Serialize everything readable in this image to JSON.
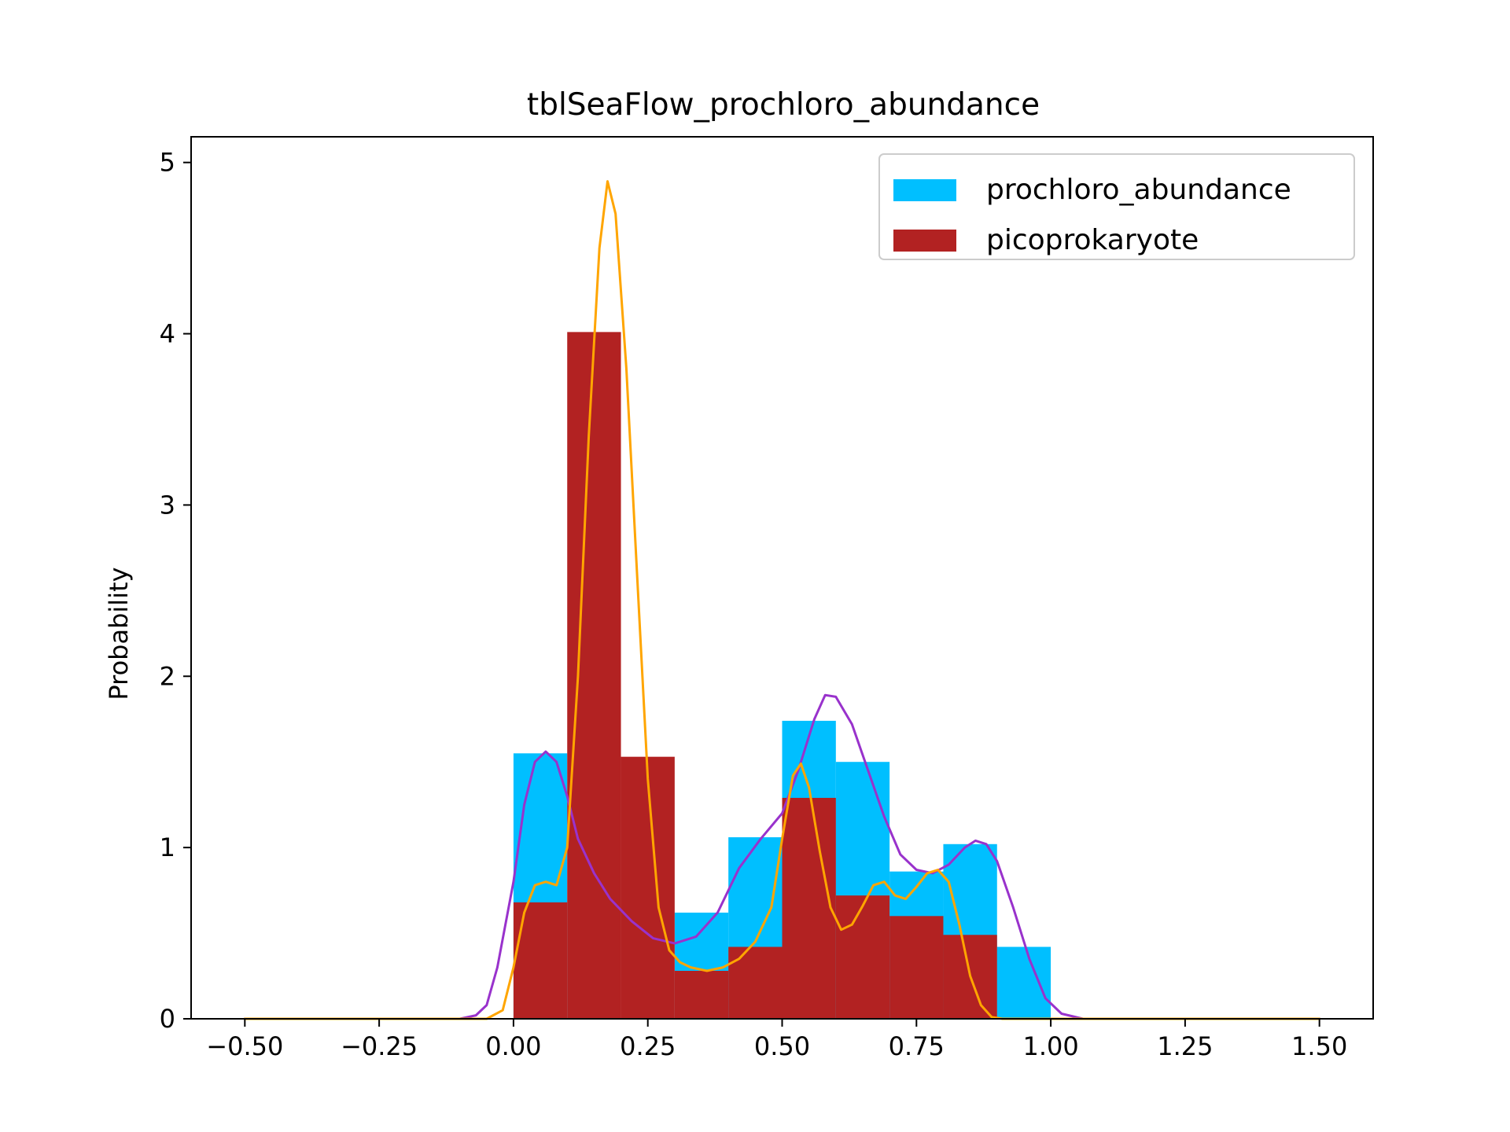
{
  "chart_data": {
    "type": "bar",
    "title": "tblSeaFlow_prochloro_abundance",
    "xlabel": "",
    "ylabel": "Probability",
    "xlim": [
      -0.6,
      1.6
    ],
    "ylim": [
      0,
      5.15
    ],
    "xticks": [
      -0.5,
      -0.25,
      0.0,
      0.25,
      0.5,
      0.75,
      1.0,
      1.25,
      1.5
    ],
    "xtick_labels": [
      "−0.50",
      "−0.25",
      "0.00",
      "0.25",
      "0.50",
      "0.75",
      "1.00",
      "1.25",
      "1.50"
    ],
    "yticks": [
      0,
      1,
      2,
      3,
      4,
      5
    ],
    "ytick_labels": [
      "0",
      "1",
      "2",
      "3",
      "4",
      "5"
    ],
    "grid": false,
    "legend_position": "top-right",
    "bin_edges": [
      0.0,
      0.1,
      0.2,
      0.3,
      0.4,
      0.5,
      0.6,
      0.7,
      0.8,
      0.9,
      1.0
    ],
    "series": [
      {
        "name": "prochloro_abundance",
        "kind": "histogram",
        "color": "#00bfff",
        "values": [
          1.55,
          0.0,
          0.0,
          0.62,
          1.06,
          1.74,
          1.5,
          0.86,
          1.02,
          0.42
        ]
      },
      {
        "name": "picoprokaryote",
        "kind": "histogram",
        "color": "#b22222",
        "values": [
          0.68,
          4.01,
          1.53,
          0.28,
          0.42,
          1.29,
          0.72,
          0.6,
          0.49,
          0.0
        ]
      }
    ],
    "density_curves": [
      {
        "color": "#9932cc",
        "points": [
          [
            -0.5,
            0
          ],
          [
            -0.1,
            0
          ],
          [
            -0.07,
            0.02
          ],
          [
            -0.05,
            0.08
          ],
          [
            -0.03,
            0.3
          ],
          [
            0.0,
            0.8
          ],
          [
            0.02,
            1.25
          ],
          [
            0.04,
            1.5
          ],
          [
            0.06,
            1.56
          ],
          [
            0.08,
            1.5
          ],
          [
            0.1,
            1.3
          ],
          [
            0.12,
            1.05
          ],
          [
            0.15,
            0.85
          ],
          [
            0.18,
            0.7
          ],
          [
            0.22,
            0.57
          ],
          [
            0.26,
            0.47
          ],
          [
            0.3,
            0.44
          ],
          [
            0.34,
            0.48
          ],
          [
            0.38,
            0.62
          ],
          [
            0.42,
            0.88
          ],
          [
            0.46,
            1.05
          ],
          [
            0.5,
            1.2
          ],
          [
            0.53,
            1.45
          ],
          [
            0.56,
            1.75
          ],
          [
            0.58,
            1.89
          ],
          [
            0.6,
            1.88
          ],
          [
            0.63,
            1.72
          ],
          [
            0.66,
            1.45
          ],
          [
            0.69,
            1.18
          ],
          [
            0.72,
            0.96
          ],
          [
            0.75,
            0.87
          ],
          [
            0.78,
            0.85
          ],
          [
            0.81,
            0.9
          ],
          [
            0.84,
            1.0
          ],
          [
            0.86,
            1.04
          ],
          [
            0.88,
            1.02
          ],
          [
            0.9,
            0.92
          ],
          [
            0.93,
            0.65
          ],
          [
            0.96,
            0.35
          ],
          [
            0.99,
            0.12
          ],
          [
            1.02,
            0.03
          ],
          [
            1.06,
            0.0
          ],
          [
            1.5,
            0
          ]
        ]
      },
      {
        "color": "#ffa500",
        "points": [
          [
            -0.5,
            0
          ],
          [
            -0.05,
            0
          ],
          [
            -0.02,
            0.05
          ],
          [
            0.0,
            0.3
          ],
          [
            0.02,
            0.62
          ],
          [
            0.04,
            0.78
          ],
          [
            0.06,
            0.8
          ],
          [
            0.08,
            0.78
          ],
          [
            0.1,
            1.0
          ],
          [
            0.12,
            2.0
          ],
          [
            0.14,
            3.4
          ],
          [
            0.16,
            4.5
          ],
          [
            0.175,
            4.89
          ],
          [
            0.19,
            4.7
          ],
          [
            0.21,
            3.8
          ],
          [
            0.23,
            2.6
          ],
          [
            0.25,
            1.4
          ],
          [
            0.27,
            0.65
          ],
          [
            0.29,
            0.4
          ],
          [
            0.31,
            0.33
          ],
          [
            0.33,
            0.3
          ],
          [
            0.36,
            0.28
          ],
          [
            0.39,
            0.3
          ],
          [
            0.42,
            0.35
          ],
          [
            0.45,
            0.45
          ],
          [
            0.48,
            0.65
          ],
          [
            0.5,
            1.05
          ],
          [
            0.52,
            1.42
          ],
          [
            0.535,
            1.49
          ],
          [
            0.55,
            1.35
          ],
          [
            0.57,
            0.98
          ],
          [
            0.59,
            0.65
          ],
          [
            0.61,
            0.52
          ],
          [
            0.63,
            0.55
          ],
          [
            0.65,
            0.66
          ],
          [
            0.67,
            0.78
          ],
          [
            0.69,
            0.8
          ],
          [
            0.71,
            0.72
          ],
          [
            0.73,
            0.7
          ],
          [
            0.75,
            0.77
          ],
          [
            0.77,
            0.85
          ],
          [
            0.79,
            0.87
          ],
          [
            0.81,
            0.8
          ],
          [
            0.83,
            0.55
          ],
          [
            0.85,
            0.25
          ],
          [
            0.87,
            0.08
          ],
          [
            0.89,
            0.01
          ],
          [
            0.91,
            0.0
          ],
          [
            1.5,
            0
          ]
        ]
      }
    ]
  }
}
